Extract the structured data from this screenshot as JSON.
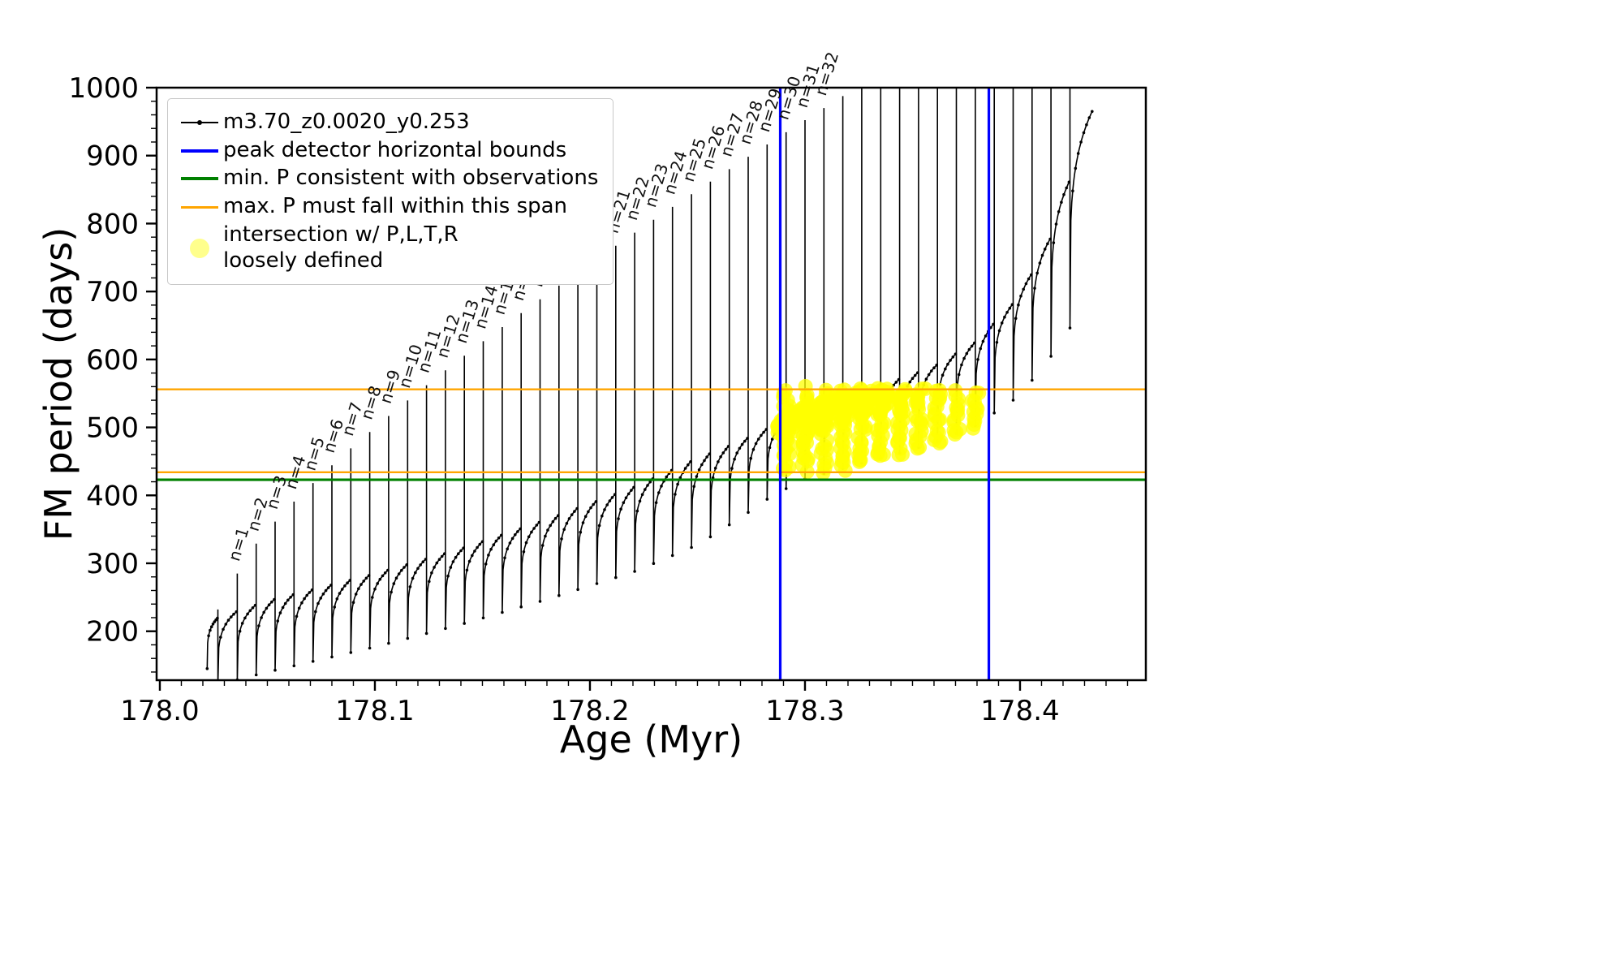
{
  "figure": {
    "background": "#ffffff"
  },
  "legend": {
    "items": [
      {
        "label": "m3.70_z0.0020_y0.253",
        "color": "#000000",
        "style": "line-dot"
      },
      {
        "label": "peak detector horizontal bounds",
        "color": "#0000ff",
        "style": "line"
      },
      {
        "label": "min. P consistent with observations",
        "color": "#008000",
        "style": "line"
      },
      {
        "label": "max. P must fall within this span",
        "color": "#ffa500",
        "style": "line"
      },
      {
        "label": "intersection w/ P,L,T,R",
        "label2": "loosely defined",
        "color": "#ffff00",
        "style": "marker"
      }
    ]
  },
  "chart_data": {
    "type": "line",
    "title": "",
    "xlabel": "Age (Myr)",
    "ylabel": "FM period (days)",
    "xlim": [
      177.9985,
      178.4585
    ],
    "ylim": [
      128,
      1000
    ],
    "x_ticks": [
      {
        "v": 178.0,
        "label": "178.0"
      },
      {
        "v": 178.1,
        "label": "178.1"
      },
      {
        "v": 178.2,
        "label": "178.2"
      },
      {
        "v": 178.3,
        "label": "178.3"
      },
      {
        "v": 178.4,
        "label": "178.4"
      }
    ],
    "x_minor_step": 0.01,
    "y_ticks": [
      {
        "v": 200,
        "label": "200"
      },
      {
        "v": 300,
        "label": "300"
      },
      {
        "v": 400,
        "label": "400"
      },
      {
        "v": 500,
        "label": "500"
      },
      {
        "v": 600,
        "label": "600"
      },
      {
        "v": 700,
        "label": "700"
      },
      {
        "v": 800,
        "label": "800"
      },
      {
        "v": 900,
        "label": "900"
      },
      {
        "v": 1000,
        "label": "1000"
      }
    ],
    "y_minor_step": 20,
    "series": [
      {
        "name": "m3.70_z0.0020_y0.253",
        "color": "#000000",
        "marker": "dot",
        "linewidth": 1.6
      }
    ],
    "vlines": [
      {
        "x": 178.2885,
        "color": "#0000ff",
        "width": 3.2,
        "meaning": "peak detector horizontal bounds"
      },
      {
        "x": 178.3855,
        "color": "#0000ff",
        "width": 3.2,
        "meaning": "peak detector horizontal bounds"
      }
    ],
    "hlines": [
      {
        "y": 423,
        "color": "#008000",
        "width": 3.2,
        "meaning": "min. P consistent with observations"
      },
      {
        "y": 434,
        "color": "#ffa500",
        "width": 2.4,
        "meaning": "max. P span lower edge"
      },
      {
        "y": 556,
        "color": "#ffa500",
        "width": 2.4,
        "meaning": "max. P span upper edge"
      }
    ],
    "spikes": {
      "x_start": 178.036,
      "spacing": 0.0088,
      "count": 45,
      "labeled_count": 32,
      "label_prefix": "n=",
      "peak_base": 285,
      "peak_span": 685,
      "peak_exp": 0.8,
      "pre_spike_x": 178.027,
      "pre_spike_peak": 232,
      "dip_depth": 28,
      "curve_x_start": 178.022,
      "curve_x_end": 178.4335
    },
    "envelopes": {
      "low": [
        [
          178.022,
          145
        ],
        [
          178.05,
          168
        ],
        [
          178.1,
          205
        ],
        [
          178.14,
          238
        ],
        [
          178.18,
          275
        ],
        [
          178.22,
          315
        ],
        [
          178.25,
          355
        ],
        [
          178.27,
          395
        ],
        [
          178.285,
          428
        ],
        [
          178.3,
          452
        ],
        [
          178.32,
          470
        ],
        [
          178.34,
          487
        ],
        [
          178.36,
          505
        ],
        [
          178.38,
          532
        ],
        [
          178.4,
          575
        ],
        [
          178.415,
          635
        ],
        [
          178.43,
          707
        ]
      ],
      "high": [
        [
          178.027,
          220
        ],
        [
          178.05,
          245
        ],
        [
          178.1,
          285
        ],
        [
          178.14,
          322
        ],
        [
          178.18,
          365
        ],
        [
          178.22,
          412
        ],
        [
          178.25,
          455
        ],
        [
          178.27,
          480
        ],
        [
          178.285,
          502
        ],
        [
          178.3,
          526
        ],
        [
          178.32,
          550
        ],
        [
          178.34,
          567
        ],
        [
          178.36,
          590
        ],
        [
          178.38,
          627
        ],
        [
          178.4,
          693
        ],
        [
          178.415,
          783
        ],
        [
          178.4335,
          965
        ]
      ]
    },
    "intersection": {
      "x_range": [
        178.2865,
        178.3865
      ],
      "y_range": [
        436,
        556
      ],
      "color": "#ffff00",
      "dot_radius": 9
    }
  }
}
